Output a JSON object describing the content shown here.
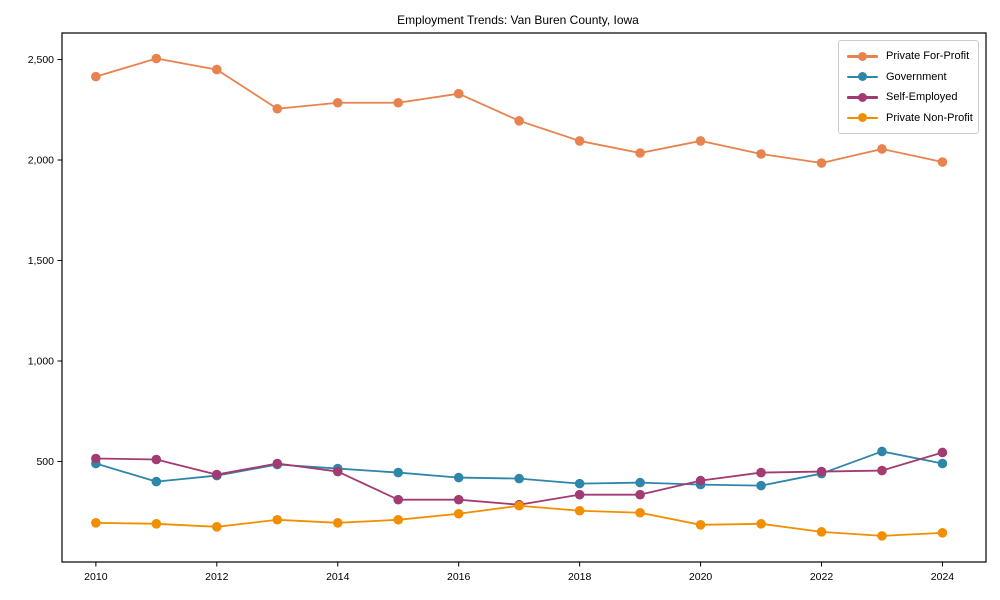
{
  "title": "Employment Trends: Van Buren County, Iowa",
  "chart_data": {
    "type": "line",
    "title": "Employment Trends: Van Buren County, Iowa",
    "xlabel": "",
    "ylabel": "",
    "x": [
      2010,
      2011,
      2012,
      2013,
      2014,
      2015,
      2016,
      2017,
      2018,
      2019,
      2020,
      2021,
      2022,
      2023,
      2024
    ],
    "series": [
      {
        "name": "Private For-Profit",
        "color": "#E8824E",
        "values": [
          2415,
          2505,
          2450,
          2255,
          2285,
          2285,
          2330,
          2195,
          2095,
          2035,
          2095,
          2030,
          1985,
          2055,
          1990
        ]
      },
      {
        "name": "Government",
        "color": "#2E86AB",
        "values": [
          490,
          400,
          430,
          485,
          465,
          445,
          420,
          415,
          390,
          395,
          385,
          380,
          440,
          550,
          490
        ]
      },
      {
        "name": "Self-Employed",
        "color": "#A23B72",
        "values": [
          515,
          510,
          435,
          490,
          450,
          310,
          310,
          285,
          335,
          335,
          405,
          445,
          450,
          455,
          545
        ]
      },
      {
        "name": "Private Non-Profit",
        "color": "#F18F01",
        "values": [
          195,
          190,
          175,
          210,
          195,
          210,
          240,
          280,
          255,
          245,
          185,
          190,
          150,
          130,
          145
        ]
      }
    ],
    "xlim": [
      2009.44,
      2024.72
    ],
    "ylim": [
      0,
      2632
    ],
    "xticks": {
      "values": [
        2010,
        2012,
        2014,
        2016,
        2018,
        2020,
        2022,
        2024
      ],
      "labels": [
        "2010",
        "2012",
        "2014",
        "2016",
        "2018",
        "2020",
        "2022",
        "2024"
      ]
    },
    "yticks": {
      "values": [
        500,
        1000,
        1500,
        2000,
        2500
      ],
      "labels": [
        "500",
        "1,000",
        "1,500",
        "2,000",
        "2,500"
      ]
    },
    "grid": false,
    "legend_position": "upper right",
    "marker": "circle",
    "line_width": 1.8,
    "marker_radius": 4.8,
    "axis_color": "#000000",
    "background": "#ffffff"
  }
}
